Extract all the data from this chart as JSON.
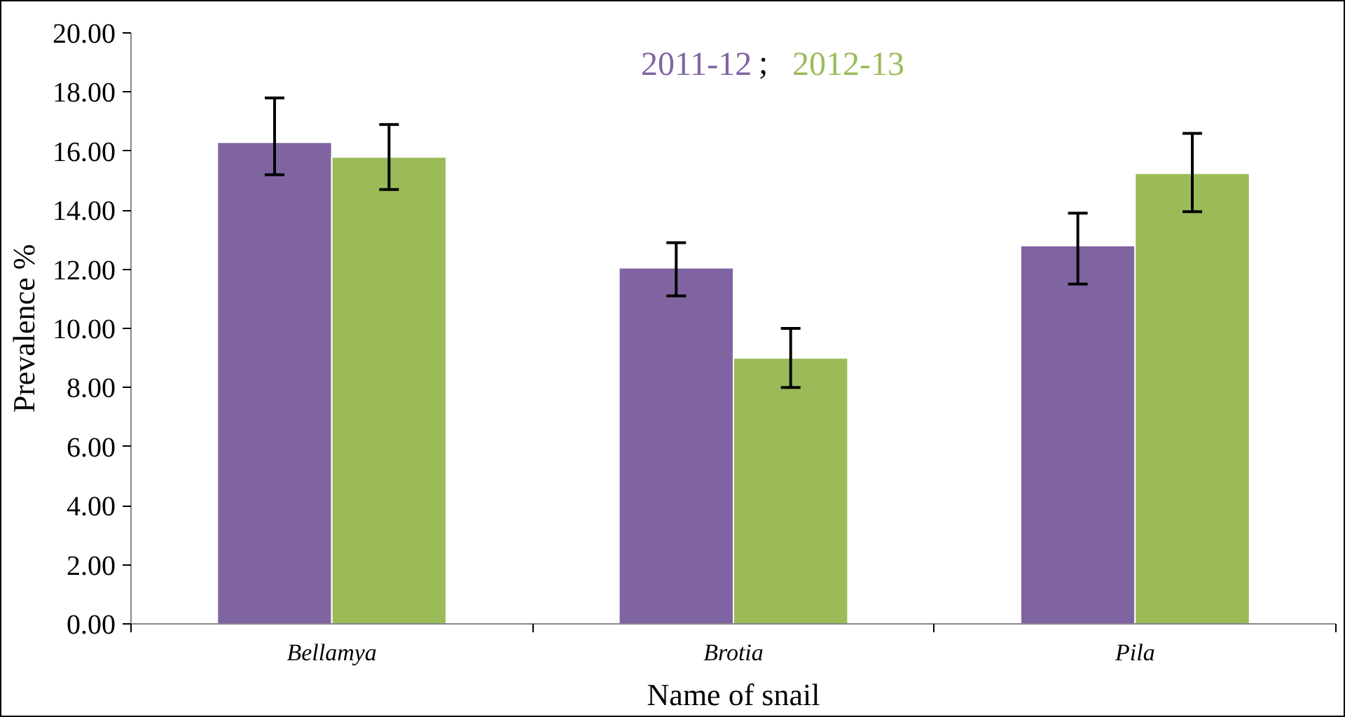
{
  "chart_data": {
    "type": "bar",
    "xlabel": "Name of snail",
    "ylabel": "Prevalence %",
    "categories": [
      "Bellamya",
      "Brotia",
      "Pila"
    ],
    "series": [
      {
        "name": "2011-12",
        "color": "#8064a2",
        "values": [
          16.3,
          12.05,
          12.8
        ],
        "errors": [
          [
            15.2,
            17.8
          ],
          [
            11.1,
            12.9
          ],
          [
            11.5,
            13.9
          ]
        ]
      },
      {
        "name": "2012-13",
        "color": "#9bbb59",
        "values": [
          15.8,
          9.0,
          15.25
        ],
        "errors": [
          [
            14.7,
            16.9
          ],
          [
            8.0,
            10.0
          ],
          [
            13.95,
            16.6
          ]
        ]
      }
    ],
    "ylim": [
      0,
      20
    ],
    "yticks": [
      {
        "value": 0,
        "label": "0.00"
      },
      {
        "value": 2,
        "label": "2.00"
      },
      {
        "value": 4,
        "label": "4.00"
      },
      {
        "value": 6,
        "label": "6.00"
      },
      {
        "value": 8,
        "label": "8.00"
      },
      {
        "value": 10,
        "label": "10.00"
      },
      {
        "value": 12,
        "label": "12.00"
      },
      {
        "value": 14,
        "label": "14.00"
      },
      {
        "value": 16,
        "label": "16.00"
      },
      {
        "value": 18,
        "label": "18.00"
      },
      {
        "value": 20,
        "label": "20.00"
      }
    ],
    "annotations": [
      ";"
    ],
    "grid": false,
    "legend": "top"
  }
}
